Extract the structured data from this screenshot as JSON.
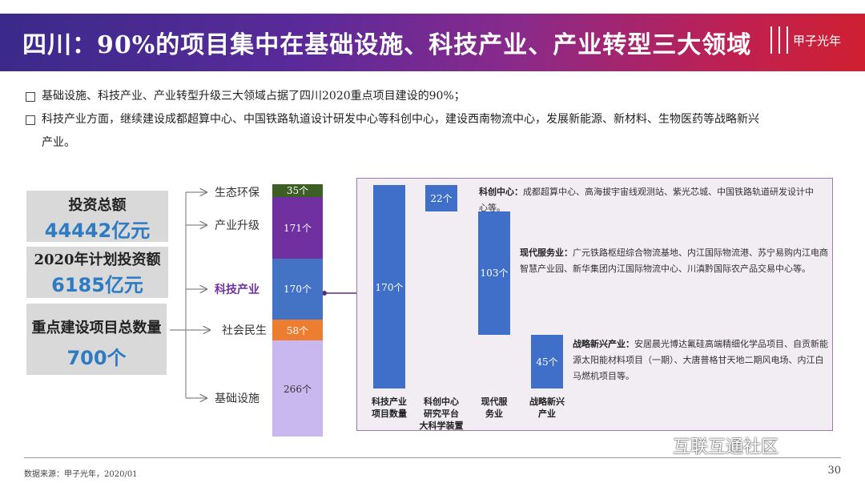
{
  "header": {
    "title": "四川：90%的项目集中在基础设施、科技产业、产业转型三大领域",
    "logo": "甲子光年"
  },
  "bullets": [
    "基础设施、科技产业、产业转型升级三大领域占据了四川2020重点项目建设的90%；",
    "科技产业方面，继续建设成都超算中心、中国铁路轨道设计研发中心等科创中心，建设西南物流中心，发展新能源、新材料、生物医药等战略新兴",
    "产业。"
  ],
  "kpis": [
    {
      "title": "投资总额",
      "value": "44442亿元"
    },
    {
      "title": "2020年计划投资额",
      "value": "6185亿元"
    },
    {
      "title": "重点建设项目总数量",
      "value": "700个"
    }
  ],
  "chart_data": [
    {
      "type": "bar",
      "subtype": "stacked",
      "categories": [
        "生态环保",
        "产业升级",
        "科技产业",
        "社会民生",
        "基础设施"
      ],
      "values": [
        35,
        171,
        170,
        58,
        266
      ],
      "data_labels": [
        "35个",
        "171个",
        "170个",
        "58个",
        "266个"
      ],
      "colors": [
        "#3d5e24",
        "#7030a0",
        "#4472c4",
        "#ed7d31",
        "#c9b8f0"
      ],
      "highlight": "科技产业",
      "highlight_color": "#7030a0"
    },
    {
      "type": "bar",
      "subtype": "waterfall",
      "categories": [
        "科技产业项目数量",
        "科创中心研究平台大科学装置",
        "现代服务业",
        "战略新兴产业"
      ],
      "values": [
        170,
        22,
        103,
        45
      ],
      "data_labels": [
        "170个",
        "22个",
        "103个",
        "45个"
      ],
      "color": "#3f6fc9",
      "annotations": [
        {
          "head": "科创中心：",
          "text": "成都超算中心、高海拔宇宙线观测站、紫光芯城、中国铁路轨道研发设计中心等。"
        },
        {
          "head": "现代服务业：",
          "text": "广元铁路枢纽综合物流基地、内江国际物流港、苏宁易购内江电商智慧产业园、新华集团内江国际物流中心、川滇黔国际农产品交易中心等。"
        },
        {
          "head": "战略新兴产业：",
          "text": "安居晨光博达氟硅高端精细化学品项目、自贡新能源太阳能材料项目（一期）、大唐普格甘天地二期风电场、内江白马燃机项目等。"
        }
      ]
    }
  ],
  "footer": {
    "source": "数据来源：甲子光年，2020/01",
    "page": "30",
    "watermark": "互联互通社区"
  }
}
